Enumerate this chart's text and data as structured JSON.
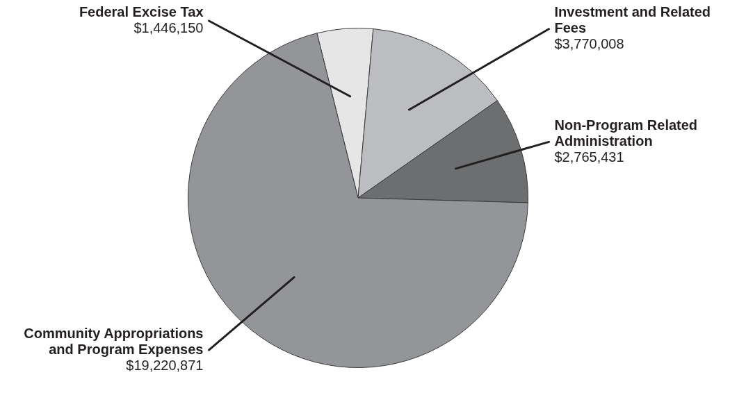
{
  "chart_data": {
    "type": "pie",
    "categories": [
      "Federal Excise Tax",
      "Investment and Related Fees",
      "Non-Program Related Administration",
      "Community Appropriations and Program Expenses"
    ],
    "values": [
      1446150,
      3770008,
      2765431,
      19220871
    ],
    "value_labels": [
      "$1,446,150",
      "$3,770,008",
      "$2,765,431",
      "$19,220,871"
    ],
    "colors": [
      "#e6e6e7",
      "#bcbdc0",
      "#6d6e70",
      "#939598"
    ],
    "legend": false
  }
}
